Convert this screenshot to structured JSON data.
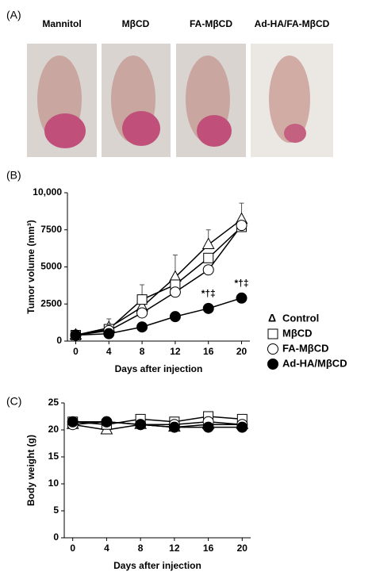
{
  "panel_a": {
    "label": "(A)",
    "captions": [
      "Mannitol",
      "MβCD",
      "FA-MβCD",
      "Ad-HA/FA-MβCD"
    ]
  },
  "chart_data": [
    {
      "type": "line",
      "panel_label": "(B)",
      "xlabel": "Days after injection",
      "ylabel": "Tumor volume (mm³)",
      "x": [
        0,
        4,
        8,
        12,
        16,
        20
      ],
      "xlim": [
        -1,
        21
      ],
      "xticks": [
        0,
        4,
        8,
        12,
        16,
        20
      ],
      "ylim": [
        0,
        10000
      ],
      "yticks": [
        0,
        2500,
        5000,
        7500,
        {
          "value": 10000,
          "label": "10,000"
        }
      ],
      "legend": "outside-right",
      "series": [
        {
          "name": "Control",
          "legend_symbol": "Δ",
          "marker": "triangle",
          "color": "#000",
          "fill": "#fff",
          "values": [
            400,
            900,
            2300,
            4300,
            6500,
            8200
          ],
          "errors": [
            100,
            600,
            1500,
            1500,
            1000,
            1100
          ]
        },
        {
          "name": "MβCD",
          "marker": "square",
          "color": "#000",
          "fill": "#fff",
          "values": [
            400,
            800,
            2800,
            3800,
            5600,
            7700
          ]
        },
        {
          "name": "FA-MβCD",
          "marker": "circle",
          "color": "#000",
          "fill": "#fff",
          "values": [
            400,
            700,
            1900,
            3300,
            4800,
            7800
          ]
        },
        {
          "name": "Ad-HA/MβCD",
          "marker": "circle",
          "color": "#000",
          "fill": "#000",
          "values": [
            400,
            500,
            950,
            1650,
            2200,
            2900
          ]
        }
      ],
      "annotations": [
        {
          "text": "*†‡",
          "x": 16
        },
        {
          "text": "*†‡",
          "x": 20
        }
      ]
    },
    {
      "type": "line",
      "panel_label": "(C)",
      "xlabel": "Days after injection",
      "ylabel": "Body weight (g)",
      "x": [
        0,
        4,
        8,
        12,
        16,
        20
      ],
      "xlim": [
        -1,
        21
      ],
      "xticks": [
        0,
        4,
        8,
        12,
        16,
        20
      ],
      "ylim": [
        0,
        25
      ],
      "yticks": [
        0,
        5,
        10,
        15,
        20,
        25
      ],
      "series": [
        {
          "marker": "triangle",
          "color": "#000",
          "fill": "#fff",
          "values": [
            21,
            20,
            21,
            20.5,
            21,
            21
          ]
        },
        {
          "marker": "square",
          "color": "#000",
          "fill": "#fff",
          "values": [
            21.5,
            21,
            22,
            21.5,
            22.5,
            22
          ]
        },
        {
          "marker": "circle",
          "color": "#000",
          "fill": "#fff",
          "values": [
            21,
            21.5,
            21,
            21,
            21.5,
            21
          ]
        },
        {
          "marker": "circle",
          "color": "#000",
          "fill": "#000",
          "values": [
            21.5,
            21.5,
            21,
            20.5,
            20.5,
            20.5
          ]
        }
      ]
    }
  ]
}
